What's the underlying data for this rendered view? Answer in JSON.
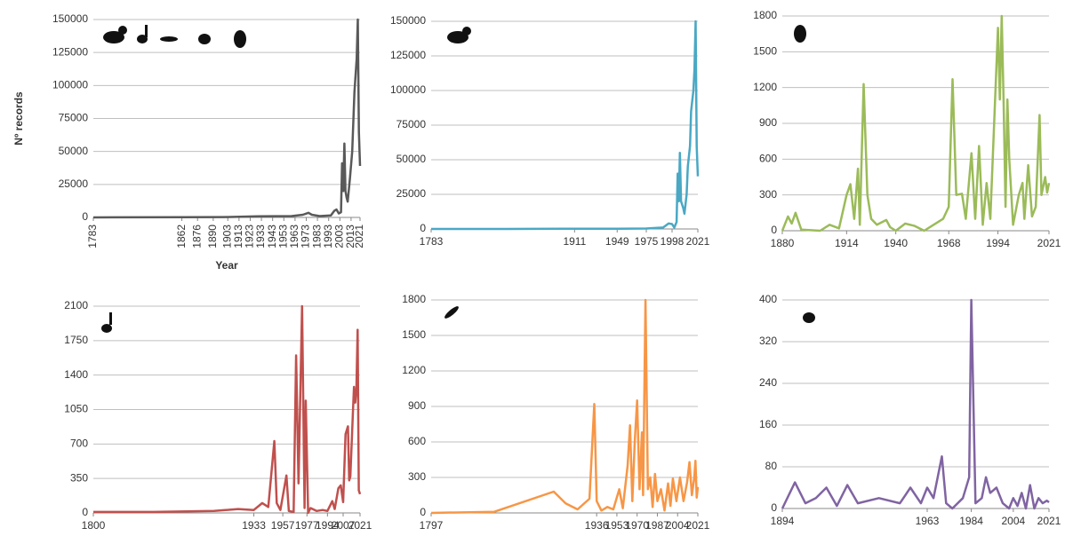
{
  "chart_data": [
    {
      "type": "line",
      "y_label": "Nº records",
      "x_label": "Year",
      "x": [
        1783,
        1862,
        1900,
        1930,
        1960,
        1970,
        1975,
        1978,
        1985,
        1995,
        1998,
        2000,
        2002,
        2004,
        2005,
        2006,
        2007,
        2008,
        2009,
        2010,
        2012,
        2014,
        2016,
        2018,
        2019,
        2020,
        2021
      ],
      "series": [
        {
          "color": "#595959",
          "values": [
            0,
            200,
            300,
            800,
            1000,
            2000,
            3500,
            2000,
            1000,
            1500,
            5000,
            6000,
            3000,
            4000,
            41000,
            20000,
            56000,
            20000,
            15000,
            12000,
            30000,
            50000,
            95000,
            120000,
            150000,
            65000,
            39000
          ]
        }
      ],
      "xlim": [
        1783,
        2021
      ],
      "xticks": [
        1783,
        1862,
        1876,
        1890,
        1903,
        1913,
        1923,
        1933,
        1943,
        1953,
        1963,
        1973,
        1983,
        1993,
        2003,
        2013,
        2021
      ],
      "ylim": [
        0,
        150000
      ],
      "yticks": [
        0,
        25000,
        50000,
        75000,
        100000,
        125000,
        150000
      ],
      "grid": true,
      "rotate_xticks": true
    },
    {
      "type": "line",
      "x": [
        1783,
        1850,
        1900,
        1950,
        1975,
        1990,
        1995,
        1998,
        2000,
        2002,
        2003,
        2004,
        2005,
        2006,
        2008,
        2009,
        2011,
        2012,
        2014,
        2015,
        2017,
        2018,
        2019,
        2020,
        2021
      ],
      "series": [
        {
          "color": "#4aa8c4",
          "values": [
            0,
            0,
            100,
            200,
            300,
            1000,
            4000,
            3500,
            1000,
            5000,
            40000,
            20000,
            55000,
            20000,
            15000,
            11000,
            25000,
            45000,
            60000,
            85000,
            100000,
            115000,
            150000,
            60000,
            38000
          ]
        }
      ],
      "xlim": [
        1783,
        2021
      ],
      "xticks": [
        1783,
        1911,
        1949,
        1975,
        1998,
        2021
      ],
      "ylim": [
        0,
        150000
      ],
      "yticks": [
        0,
        25000,
        50000,
        75000,
        100000,
        125000,
        150000
      ],
      "grid": true
    },
    {
      "type": "line",
      "x": [
        1880,
        1883,
        1885,
        1887,
        1890,
        1900,
        1905,
        1910,
        1914,
        1916,
        1918,
        1920,
        1921,
        1923,
        1925,
        1927,
        1930,
        1935,
        1937,
        1940,
        1945,
        1950,
        1955,
        1960,
        1965,
        1968,
        1970,
        1972,
        1975,
        1977,
        1980,
        1982,
        1984,
        1986,
        1988,
        1990,
        1994,
        1995,
        1996,
        1997,
        1998,
        1999,
        2000,
        2002,
        2005,
        2007,
        2008,
        2010,
        2012,
        2014,
        2016,
        2017,
        2019,
        2020,
        2021
      ],
      "series": [
        {
          "color": "#9bbb59",
          "values": [
            0,
            120,
            60,
            150,
            10,
            0,
            50,
            20,
            300,
            390,
            100,
            520,
            50,
            1229,
            300,
            100,
            50,
            90,
            30,
            0,
            60,
            40,
            0,
            50,
            100,
            200,
            1270,
            300,
            310,
            100,
            650,
            100,
            710,
            50,
            400,
            100,
            1700,
            1100,
            1800,
            1100,
            200,
            1100,
            600,
            50,
            300,
            400,
            100,
            550,
            120,
            200,
            970,
            300,
            450,
            320,
            400
          ]
        }
      ],
      "xlim": [
        1880,
        2021
      ],
      "xticks": [
        1880,
        1914,
        1940,
        1968,
        1994,
        2021
      ],
      "ylim": [
        0,
        1800
      ],
      "yticks": [
        0,
        300,
        600,
        900,
        1200,
        1500,
        1800
      ],
      "grid": true
    },
    {
      "type": "line",
      "x": [
        1800,
        1850,
        1900,
        1920,
        1933,
        1940,
        1945,
        1950,
        1952,
        1955,
        1960,
        1962,
        1966,
        1968,
        1970,
        1973,
        1975,
        1976,
        1978,
        1980,
        1985,
        1990,
        1994,
        1998,
        2000,
        2003,
        2005,
        2007,
        2009,
        2011,
        2012,
        2013,
        2015,
        2016,
        2017,
        2018,
        2019,
        2020,
        2021
      ],
      "series": [
        {
          "color": "#c0504d",
          "values": [
            10,
            10,
            20,
            40,
            30,
            100,
            60,
            730,
            100,
            30,
            380,
            20,
            10,
            1600,
            300,
            2100,
            50,
            1140,
            0,
            50,
            20,
            30,
            20,
            120,
            40,
            250,
            280,
            110,
            800,
            880,
            330,
            370,
            1000,
            1280,
            1120,
            1250,
            1860,
            230,
            190
          ]
        }
      ],
      "xlim": [
        1800,
        2021
      ],
      "xticks": [
        1800,
        1933,
        1957,
        1977,
        1994,
        2007,
        2021
      ],
      "ylim": [
        0,
        2100
      ],
      "yticks": [
        0,
        350,
        700,
        1050,
        1400,
        1750,
        2100
      ],
      "grid": true
    },
    {
      "type": "line",
      "x": [
        1797,
        1850,
        1900,
        1910,
        1920,
        1930,
        1934,
        1936,
        1940,
        1945,
        1950,
        1955,
        1958,
        1962,
        1964,
        1966,
        1968,
        1970,
        1972,
        1974,
        1975,
        1977,
        1979,
        1981,
        1983,
        1985,
        1987,
        1990,
        1993,
        1996,
        1998,
        2000,
        2003,
        2006,
        2009,
        2012,
        2014,
        2016,
        2018,
        2019,
        2020,
        2021
      ],
      "series": [
        {
          "color": "#f79646",
          "values": [
            0,
            10,
            180,
            80,
            30,
            120,
            920,
            100,
            20,
            50,
            30,
            200,
            40,
            400,
            740,
            100,
            600,
            950,
            200,
            680,
            150,
            1800,
            200,
            300,
            50,
            330,
            100,
            200,
            20,
            250,
            60,
            290,
            100,
            300,
            100,
            260,
            430,
            150,
            300,
            440,
            130,
            220
          ]
        }
      ],
      "xlim": [
        1797,
        2021
      ],
      "xticks": [
        1797,
        1936,
        1953,
        1970,
        1987,
        2004,
        2021
      ],
      "ylim": [
        0,
        1800
      ],
      "yticks": [
        0,
        300,
        600,
        900,
        1200,
        1500,
        1800
      ],
      "grid": true
    },
    {
      "type": "line",
      "x": [
        1894,
        1900,
        1905,
        1910,
        1915,
        1920,
        1925,
        1930,
        1940,
        1950,
        1955,
        1960,
        1963,
        1966,
        1970,
        1972,
        1975,
        1980,
        1983,
        1984,
        1986,
        1989,
        1991,
        1993,
        1996,
        1999,
        2002,
        2004,
        2006,
        2008,
        2010,
        2012,
        2014,
        2016,
        2018,
        2020,
        2021
      ],
      "series": [
        {
          "color": "#8064a2",
          "values": [
            0,
            50,
            10,
            20,
            40,
            5,
            45,
            10,
            20,
            10,
            40,
            10,
            40,
            20,
            100,
            10,
            0,
            20,
            60,
            400,
            10,
            20,
            60,
            30,
            40,
            10,
            0,
            20,
            5,
            30,
            0,
            45,
            0,
            20,
            10,
            15,
            12
          ]
        }
      ],
      "xlim": [
        1894,
        2021
      ],
      "xticks": [
        1894,
        1963,
        1984,
        2004,
        2021
      ],
      "ylim": [
        0,
        400
      ],
      "yticks": [
        0,
        80,
        160,
        240,
        320,
        400
      ],
      "grid": true
    }
  ]
}
